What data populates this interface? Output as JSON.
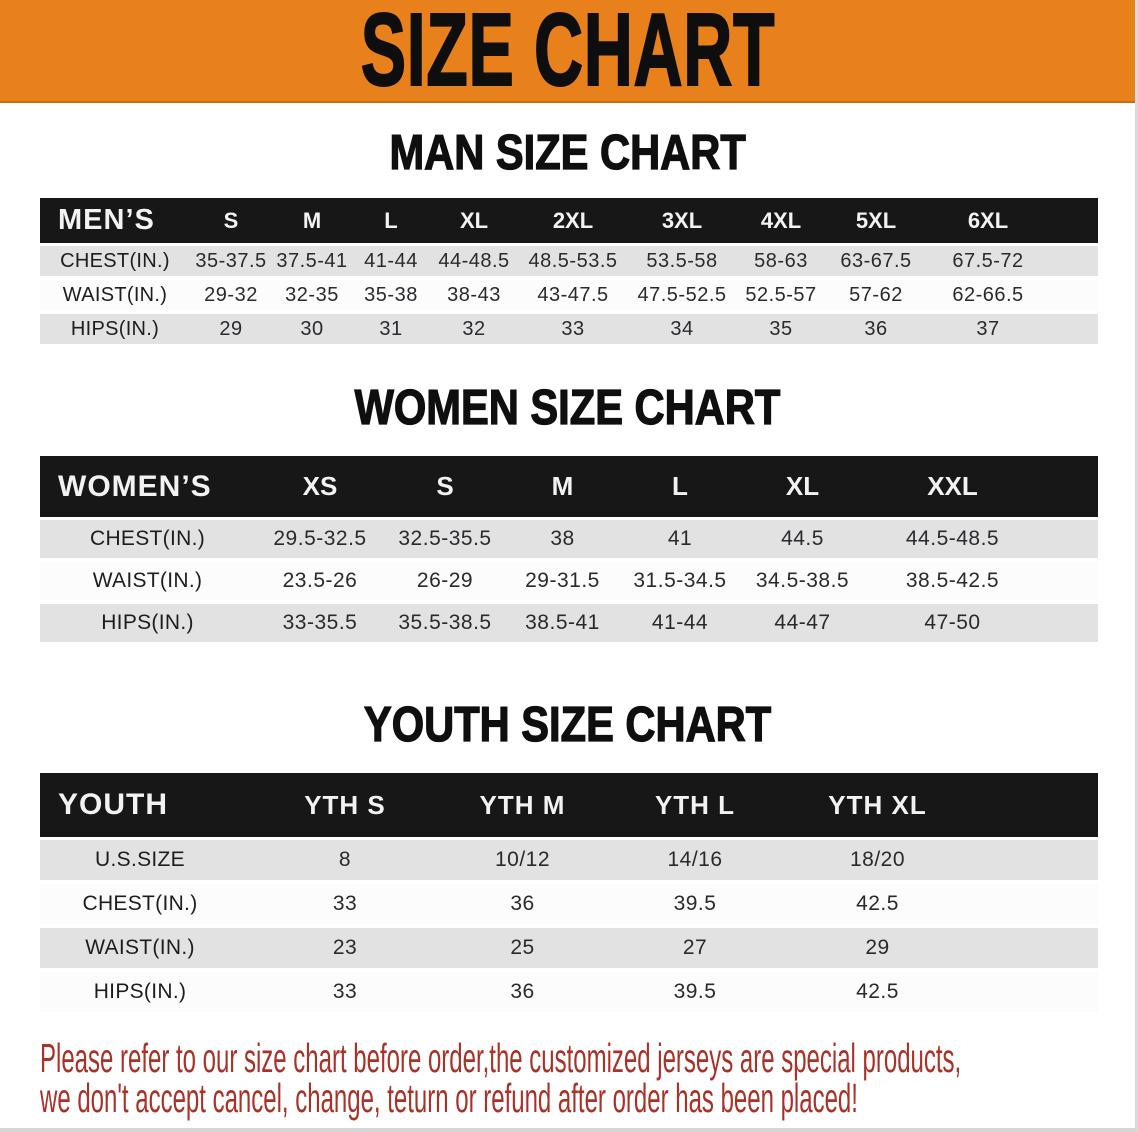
{
  "banner": {
    "title": "SIZE CHART"
  },
  "colors": {
    "banner_bg": "#E8811B",
    "table_header_bg": "#171717",
    "row_band_gray": "#E2E2E3",
    "row_band_white": "#FCFCFC",
    "note_red": "#A93228"
  },
  "men": {
    "heading": "MAN SIZE CHART",
    "label": "MEN’S",
    "sizes": [
      "S",
      "M",
      "L",
      "XL",
      "2XL",
      "3XL",
      "4XL",
      "5XL",
      "6XL"
    ],
    "rows": [
      {
        "label": "CHEST(IN.)",
        "values": [
          "35-37.5",
          "37.5-41",
          "41-44",
          "44-48.5",
          "48.5-53.5",
          "53.5-58",
          "58-63",
          "63-67.5",
          "67.5-72"
        ]
      },
      {
        "label": "WAIST(IN.)",
        "values": [
          "29-32",
          "32-35",
          "35-38",
          "38-43",
          "43-47.5",
          "47.5-52.5",
          "52.5-57",
          "57-62",
          "62-66.5"
        ]
      },
      {
        "label": "HIPS(IN.)",
        "values": [
          "29",
          "30",
          "31",
          "32",
          "33",
          "34",
          "35",
          "36",
          "37"
        ]
      }
    ]
  },
  "women": {
    "heading": "WOMEN SIZE CHART",
    "label": "WOMEN’S",
    "sizes": [
      "XS",
      "S",
      "M",
      "L",
      "XL",
      "XXL"
    ],
    "rows": [
      {
        "label": "CHEST(IN.)",
        "values": [
          "29.5-32.5",
          "32.5-35.5",
          "38",
          "41",
          "44.5",
          "44.5-48.5"
        ]
      },
      {
        "label": "WAIST(IN.)",
        "values": [
          "23.5-26",
          "26-29",
          "29-31.5",
          "31.5-34.5",
          "34.5-38.5",
          "38.5-42.5"
        ]
      },
      {
        "label": "HIPS(IN.)",
        "values": [
          "33-35.5",
          "35.5-38.5",
          "38.5-41",
          "41-44",
          "44-47",
          "47-50"
        ]
      }
    ]
  },
  "youth": {
    "heading": "YOUTH SIZE CHART",
    "label": "YOUTH",
    "sizes": [
      "YTH S",
      "YTH M",
      "YTH L",
      "YTH XL"
    ],
    "rows": [
      {
        "label": "U.S.SIZE",
        "values": [
          "8",
          "10/12",
          "14/16",
          "18/20"
        ]
      },
      {
        "label": "CHEST(IN.)",
        "values": [
          "33",
          "36",
          "39.5",
          "42.5"
        ]
      },
      {
        "label": "WAIST(IN.)",
        "values": [
          "23",
          "25",
          "27",
          "29"
        ]
      },
      {
        "label": "HIPS(IN.)",
        "values": [
          "33",
          "36",
          "39.5",
          "42.5"
        ]
      }
    ]
  },
  "note": {
    "line1": "Please refer to our size chart before order,the customized jerseys are special products,",
    "line2": "we don't accept cancel, change, teturn or refund after order has been placed!"
  }
}
